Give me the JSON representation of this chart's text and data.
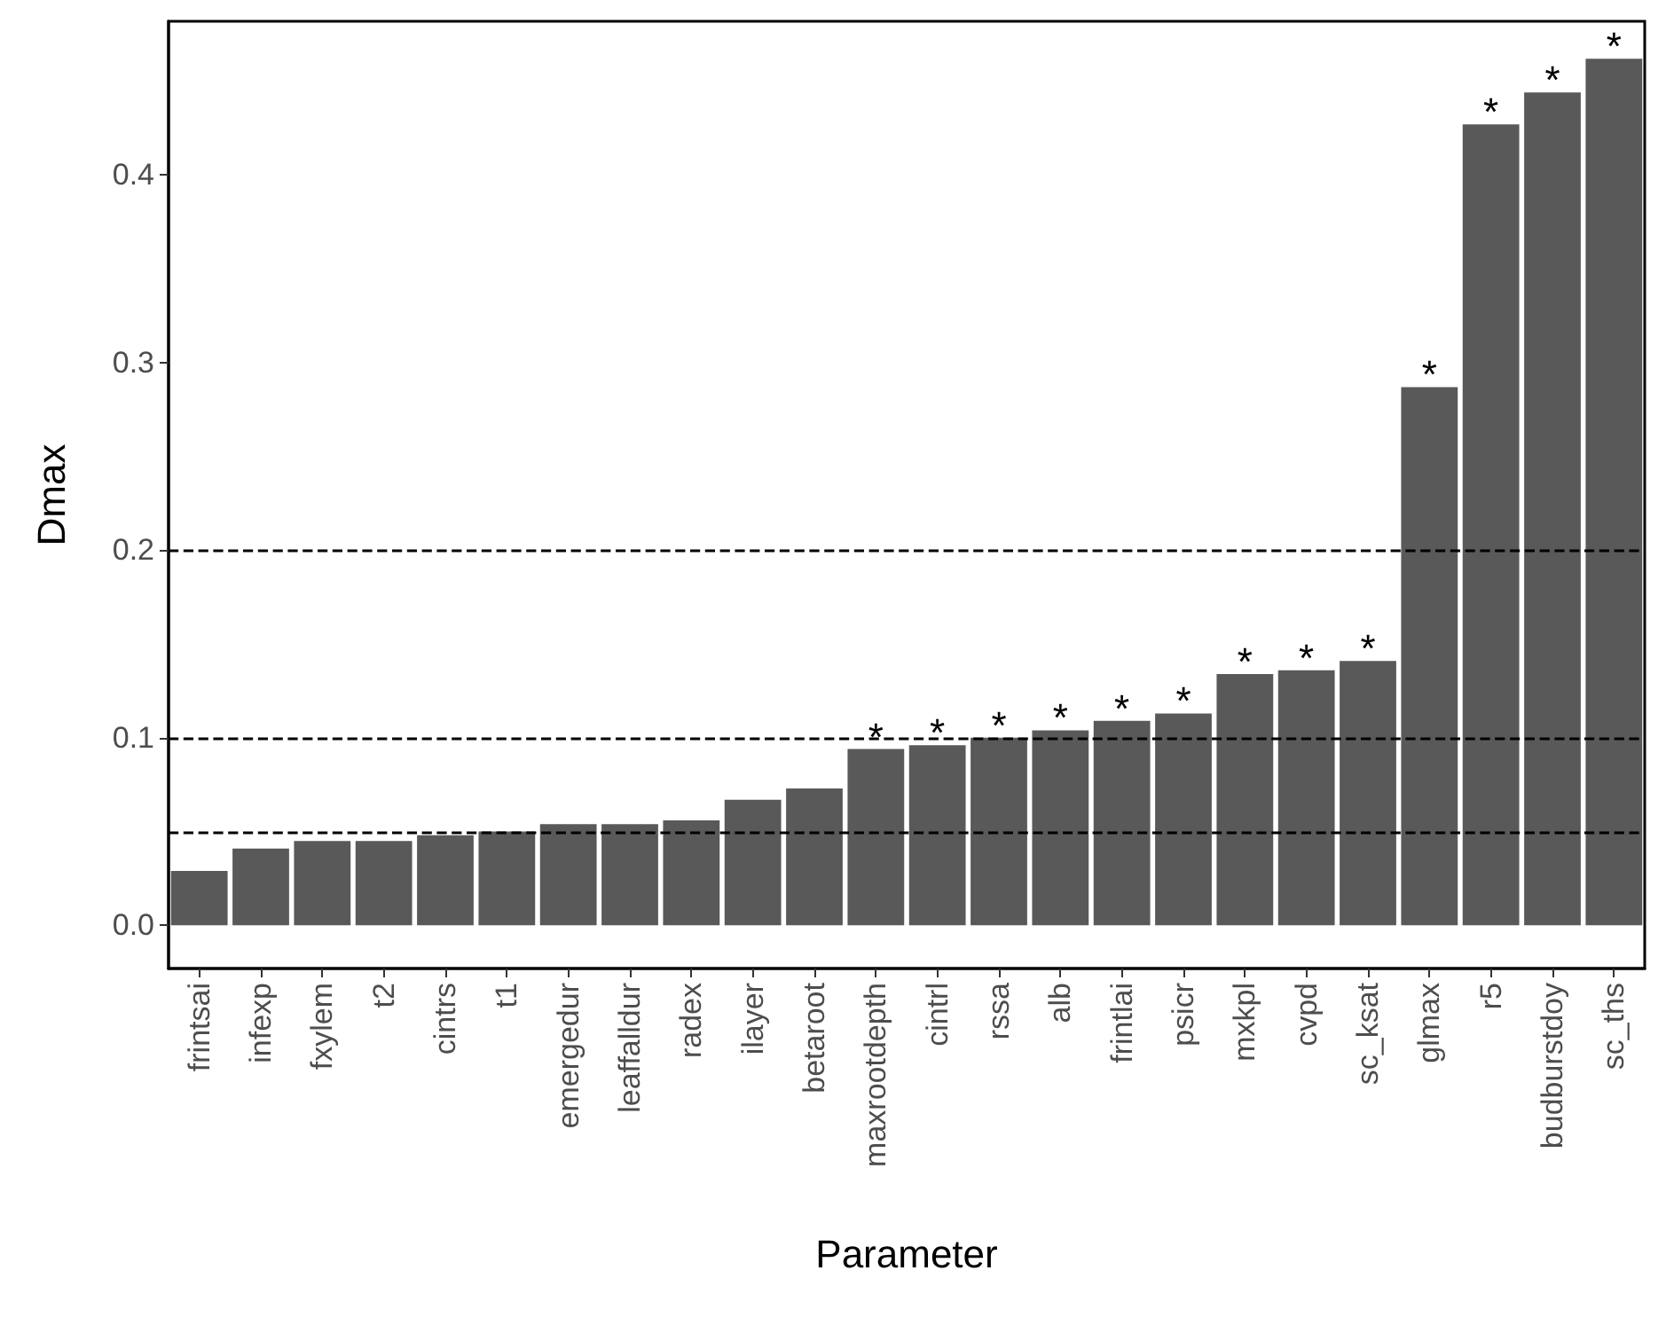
{
  "chart_data": {
    "type": "bar",
    "xlabel": "Parameter",
    "ylabel": "Dmax",
    "categories": [
      "frintsai",
      "infexp",
      "fxylem",
      "t2",
      "cintrs",
      "t1",
      "emergedur",
      "leaffalldur",
      "radex",
      "ilayer",
      "betaroot",
      "maxrootdepth",
      "cintrl",
      "rssa",
      "alb",
      "frintlai",
      "psicr",
      "mxkpl",
      "cvpd",
      "sc_ksat",
      "glmax",
      "r5",
      "budburstdoy",
      "sc_ths"
    ],
    "values": [
      0.029,
      0.041,
      0.045,
      0.045,
      0.048,
      0.05,
      0.054,
      0.054,
      0.056,
      0.067,
      0.073,
      0.094,
      0.096,
      0.1,
      0.104,
      0.109,
      0.113,
      0.134,
      0.136,
      0.141,
      0.287,
      0.427,
      0.444,
      0.462
    ],
    "value_labels": [
      null,
      null,
      null,
      null,
      null,
      null,
      null,
      null,
      null,
      null,
      null,
      "*",
      "*",
      "*",
      "*",
      "*",
      "*",
      "*",
      "*",
      "*",
      "*",
      "*",
      "*",
      "*"
    ],
    "color": "#595959",
    "ylim": [
      -0.023,
      0.482
    ],
    "yticks": [
      {
        "value": 0,
        "label": "0.0"
      },
      0.1,
      0.2,
      0.3,
      0.4
    ],
    "grid": false,
    "ref_lines": [
      {
        "axis": "y",
        "value": 0.05,
        "label": null,
        "line_style": "dashed",
        "color": "#000000"
      },
      {
        "axis": "y",
        "value": 0.1,
        "label": null,
        "line_style": "dashed",
        "color": "#000000"
      },
      {
        "axis": "y",
        "value": 0.2,
        "label": null,
        "line_style": "dashed",
        "color": "#000000"
      }
    ]
  }
}
